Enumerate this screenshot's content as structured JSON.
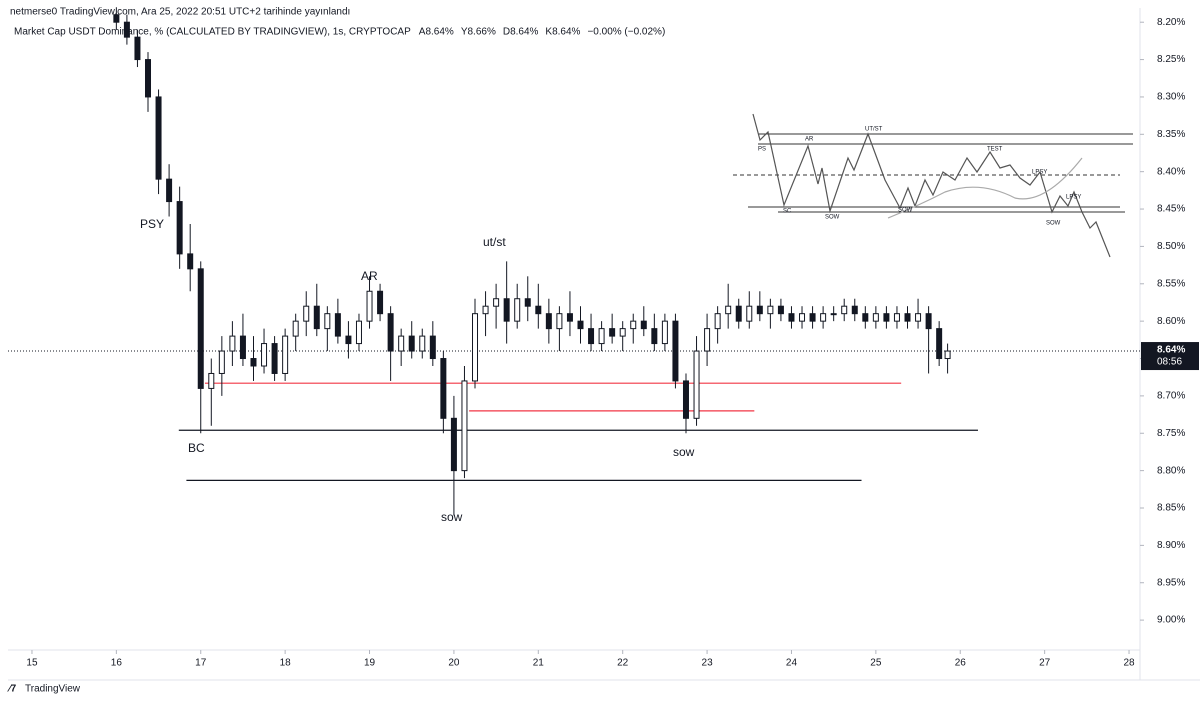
{
  "chart_data": {
    "type": "candlestick",
    "header": "netmerse0 TradingView.com, Ara 25, 2022 20:51 UTC+2 tarihinde yayınlandı",
    "title": "Market Cap USDT Dominance, % (CALCULATED BY TRADINGVIEW), 1s, CRYPTOCAP",
    "legend_values": [
      "A8.64%",
      "Y8.66%",
      "D8.64%",
      "K8.64%",
      "−0.00% (−0.02%)"
    ],
    "brand": "TradingView",
    "inverted": true,
    "xlim": [
      14.716,
      28.13
    ],
    "xticks": [
      15,
      16,
      17,
      18,
      19,
      20,
      21,
      22,
      23,
      24,
      25,
      26,
      27,
      28
    ],
    "ylim": [
      8.181,
      9.04
    ],
    "yticks": [
      {
        "value": 8.2,
        "label": "8.20%"
      },
      {
        "value": 8.25,
        "label": "8.25%"
      },
      {
        "value": 8.3,
        "label": "8.30%"
      },
      {
        "value": 8.35,
        "label": "8.35%"
      },
      {
        "value": 8.4,
        "label": "8.40%"
      },
      {
        "value": 8.45,
        "label": "8.45%"
      },
      {
        "value": 8.5,
        "label": "8.50%"
      },
      {
        "value": 8.55,
        "label": "8.55%"
      },
      {
        "value": 8.6,
        "label": "8.60%"
      },
      {
        "value": 8.65,
        "label": "8.65%"
      },
      {
        "value": 8.7,
        "label": "8.70%"
      },
      {
        "value": 8.75,
        "label": "8.75%"
      },
      {
        "value": 8.8,
        "label": "8.80%"
      },
      {
        "value": 8.85,
        "label": "8.85%"
      },
      {
        "value": 8.9,
        "label": "8.90%"
      },
      {
        "value": 8.95,
        "label": "8.95%"
      },
      {
        "value": 9.0,
        "label": "9.00%"
      }
    ],
    "color": "#131722",
    "price_line": {
      "value": 8.64,
      "label": "8.64%",
      "timer": "08:56"
    },
    "levels": [
      {
        "value": 8.746,
        "from": 16.74,
        "to": 26.21,
        "color": "#131722"
      },
      {
        "value": 8.813,
        "from": 16.83,
        "to": 24.83,
        "color": "#131722"
      },
      {
        "value": 8.683,
        "from": 17.05,
        "to": 25.3,
        "color": "#f23645"
      },
      {
        "value": 8.72,
        "from": 20.18,
        "to": 23.56,
        "color": "#f23645"
      }
    ],
    "annotations": [
      "PSY",
      "AR",
      "ut/st",
      "BC",
      "sow",
      "sow"
    ],
    "inset_labels": [
      "PS",
      "AR",
      "UT/ST",
      "TEST",
      "LPSY",
      "SC",
      "SOW",
      "SOW",
      "SOW",
      "LPSY"
    ],
    "candles": [
      {
        "x": 16.0,
        "open": 8.19,
        "high": 8.21,
        "low": 8.18,
        "close": 8.2
      },
      {
        "x": 16.125,
        "open": 8.2,
        "high": 8.23,
        "low": 8.19,
        "close": 8.22
      },
      {
        "x": 16.25,
        "open": 8.22,
        "high": 8.26,
        "low": 8.21,
        "close": 8.25
      },
      {
        "x": 16.375,
        "open": 8.25,
        "high": 8.32,
        "low": 8.24,
        "close": 8.3
      },
      {
        "x": 16.5,
        "open": 8.3,
        "high": 8.43,
        "low": 8.29,
        "close": 8.41
      },
      {
        "x": 16.625,
        "open": 8.41,
        "high": 8.46,
        "low": 8.39,
        "close": 8.44
      },
      {
        "x": 16.75,
        "open": 8.44,
        "high": 8.53,
        "low": 8.42,
        "close": 8.51
      },
      {
        "x": 16.875,
        "open": 8.51,
        "high": 8.56,
        "low": 8.47,
        "close": 8.53
      },
      {
        "x": 17.0,
        "open": 8.53,
        "high": 8.75,
        "low": 8.52,
        "close": 8.69
      },
      {
        "x": 17.125,
        "open": 8.69,
        "high": 8.74,
        "low": 8.65,
        "close": 8.67
      },
      {
        "x": 17.25,
        "open": 8.67,
        "high": 8.7,
        "low": 8.62,
        "close": 8.64
      },
      {
        "x": 17.375,
        "open": 8.64,
        "high": 8.66,
        "low": 8.6,
        "close": 8.62
      },
      {
        "x": 17.5,
        "open": 8.62,
        "high": 8.66,
        "low": 8.59,
        "close": 8.65
      },
      {
        "x": 17.625,
        "open": 8.65,
        "high": 8.68,
        "low": 8.62,
        "close": 8.66
      },
      {
        "x": 17.75,
        "open": 8.66,
        "high": 8.67,
        "low": 8.61,
        "close": 8.63
      },
      {
        "x": 17.875,
        "open": 8.63,
        "high": 8.68,
        "low": 8.62,
        "close": 8.67
      },
      {
        "x": 18.0,
        "open": 8.67,
        "high": 8.68,
        "low": 8.61,
        "close": 8.62
      },
      {
        "x": 18.125,
        "open": 8.62,
        "high": 8.64,
        "low": 8.59,
        "close": 8.6
      },
      {
        "x": 18.25,
        "open": 8.6,
        "high": 8.62,
        "low": 8.56,
        "close": 8.58
      },
      {
        "x": 18.375,
        "open": 8.58,
        "high": 8.62,
        "low": 8.55,
        "close": 8.61
      },
      {
        "x": 18.5,
        "open": 8.61,
        "high": 8.64,
        "low": 8.58,
        "close": 8.59
      },
      {
        "x": 18.625,
        "open": 8.59,
        "high": 8.63,
        "low": 8.57,
        "close": 8.62
      },
      {
        "x": 18.75,
        "open": 8.62,
        "high": 8.65,
        "low": 8.6,
        "close": 8.63
      },
      {
        "x": 18.875,
        "open": 8.63,
        "high": 8.64,
        "low": 8.59,
        "close": 8.6
      },
      {
        "x": 19.0,
        "open": 8.6,
        "high": 8.61,
        "low": 8.54,
        "close": 8.56
      },
      {
        "x": 19.125,
        "open": 8.56,
        "high": 8.6,
        "low": 8.55,
        "close": 8.59
      },
      {
        "x": 19.25,
        "open": 8.59,
        "high": 8.68,
        "low": 8.58,
        "close": 8.64
      },
      {
        "x": 19.375,
        "open": 8.64,
        "high": 8.66,
        "low": 8.61,
        "close": 8.62
      },
      {
        "x": 19.5,
        "open": 8.62,
        "high": 8.65,
        "low": 8.6,
        "close": 8.64
      },
      {
        "x": 19.625,
        "open": 8.64,
        "high": 8.65,
        "low": 8.61,
        "close": 8.62
      },
      {
        "x": 19.75,
        "open": 8.62,
        "high": 8.66,
        "low": 8.6,
        "close": 8.65
      },
      {
        "x": 19.875,
        "open": 8.65,
        "high": 8.75,
        "low": 8.64,
        "close": 8.73
      },
      {
        "x": 20.0,
        "open": 8.73,
        "high": 8.86,
        "low": 8.7,
        "close": 8.8
      },
      {
        "x": 20.125,
        "open": 8.8,
        "high": 8.81,
        "low": 8.66,
        "close": 8.68
      },
      {
        "x": 20.25,
        "open": 8.68,
        "high": 8.69,
        "low": 8.57,
        "close": 8.59
      },
      {
        "x": 20.375,
        "open": 8.59,
        "high": 8.62,
        "low": 8.56,
        "close": 8.58
      },
      {
        "x": 20.5,
        "open": 8.58,
        "high": 8.61,
        "low": 8.55,
        "close": 8.57
      },
      {
        "x": 20.625,
        "open": 8.57,
        "high": 8.63,
        "low": 8.52,
        "close": 8.6
      },
      {
        "x": 20.75,
        "open": 8.6,
        "high": 8.61,
        "low": 8.55,
        "close": 8.57
      },
      {
        "x": 20.875,
        "open": 8.57,
        "high": 8.6,
        "low": 8.54,
        "close": 8.58
      },
      {
        "x": 21.0,
        "open": 8.58,
        "high": 8.61,
        "low": 8.55,
        "close": 8.59
      },
      {
        "x": 21.125,
        "open": 8.59,
        "high": 8.63,
        "low": 8.57,
        "close": 8.61
      },
      {
        "x": 21.25,
        "open": 8.61,
        "high": 8.64,
        "low": 8.58,
        "close": 8.59
      },
      {
        "x": 21.375,
        "open": 8.59,
        "high": 8.62,
        "low": 8.56,
        "close": 8.6
      },
      {
        "x": 21.5,
        "open": 8.6,
        "high": 8.63,
        "low": 8.58,
        "close": 8.61
      },
      {
        "x": 21.625,
        "open": 8.61,
        "high": 8.64,
        "low": 8.59,
        "close": 8.63
      },
      {
        "x": 21.75,
        "open": 8.63,
        "high": 8.64,
        "low": 8.6,
        "close": 8.61
      },
      {
        "x": 21.875,
        "open": 8.61,
        "high": 8.63,
        "low": 8.59,
        "close": 8.62
      },
      {
        "x": 22.0,
        "open": 8.62,
        "high": 8.64,
        "low": 8.6,
        "close": 8.61
      },
      {
        "x": 22.125,
        "open": 8.61,
        "high": 8.63,
        "low": 8.59,
        "close": 8.6
      },
      {
        "x": 22.25,
        "open": 8.6,
        "high": 8.62,
        "low": 8.58,
        "close": 8.61
      },
      {
        "x": 22.375,
        "open": 8.61,
        "high": 8.64,
        "low": 8.59,
        "close": 8.63
      },
      {
        "x": 22.5,
        "open": 8.63,
        "high": 8.64,
        "low": 8.59,
        "close": 8.6
      },
      {
        "x": 22.625,
        "open": 8.6,
        "high": 8.69,
        "low": 8.59,
        "close": 8.68
      },
      {
        "x": 22.75,
        "open": 8.68,
        "high": 8.75,
        "low": 8.67,
        "close": 8.73
      },
      {
        "x": 22.875,
        "open": 8.73,
        "high": 8.74,
        "low": 8.62,
        "close": 8.64
      },
      {
        "x": 23.0,
        "open": 8.64,
        "high": 8.66,
        "low": 8.59,
        "close": 8.61
      },
      {
        "x": 23.125,
        "open": 8.61,
        "high": 8.63,
        "low": 8.58,
        "close": 8.59
      },
      {
        "x": 23.25,
        "open": 8.59,
        "high": 8.61,
        "low": 8.55,
        "close": 8.58
      },
      {
        "x": 23.375,
        "open": 8.58,
        "high": 8.61,
        "low": 8.57,
        "close": 8.6
      },
      {
        "x": 23.5,
        "open": 8.6,
        "high": 8.61,
        "low": 8.56,
        "close": 8.58
      },
      {
        "x": 23.625,
        "open": 8.58,
        "high": 8.6,
        "low": 8.56,
        "close": 8.59
      },
      {
        "x": 23.75,
        "open": 8.59,
        "high": 8.61,
        "low": 8.57,
        "close": 8.58
      },
      {
        "x": 23.875,
        "open": 8.58,
        "high": 8.6,
        "low": 8.57,
        "close": 8.59
      },
      {
        "x": 24.0,
        "open": 8.59,
        "high": 8.61,
        "low": 8.58,
        "close": 8.6
      },
      {
        "x": 24.125,
        "open": 8.6,
        "high": 8.61,
        "low": 8.58,
        "close": 8.59
      },
      {
        "x": 24.25,
        "open": 8.59,
        "high": 8.61,
        "low": 8.58,
        "close": 8.6
      },
      {
        "x": 24.375,
        "open": 8.6,
        "high": 8.61,
        "low": 8.58,
        "close": 8.59
      },
      {
        "x": 24.5,
        "open": 8.59,
        "high": 8.6,
        "low": 8.58,
        "close": 8.59
      },
      {
        "x": 24.625,
        "open": 8.59,
        "high": 8.6,
        "low": 8.57,
        "close": 8.58
      },
      {
        "x": 24.75,
        "open": 8.58,
        "high": 8.6,
        "low": 8.57,
        "close": 8.59
      },
      {
        "x": 24.875,
        "open": 8.59,
        "high": 8.61,
        "low": 8.58,
        "close": 8.6
      },
      {
        "x": 25.0,
        "open": 8.6,
        "high": 8.61,
        "low": 8.58,
        "close": 8.59
      },
      {
        "x": 25.125,
        "open": 8.59,
        "high": 8.61,
        "low": 8.58,
        "close": 8.6
      },
      {
        "x": 25.25,
        "open": 8.6,
        "high": 8.61,
        "low": 8.58,
        "close": 8.59
      },
      {
        "x": 25.375,
        "open": 8.59,
        "high": 8.61,
        "low": 8.58,
        "close": 8.6
      },
      {
        "x": 25.5,
        "open": 8.6,
        "high": 8.61,
        "low": 8.57,
        "close": 8.59
      },
      {
        "x": 25.625,
        "open": 8.59,
        "high": 8.67,
        "low": 8.58,
        "close": 8.61
      },
      {
        "x": 25.75,
        "open": 8.61,
        "high": 8.66,
        "low": 8.6,
        "close": 8.65
      },
      {
        "x": 25.85,
        "open": 8.65,
        "high": 8.67,
        "low": 8.63,
        "close": 8.64
      }
    ]
  }
}
